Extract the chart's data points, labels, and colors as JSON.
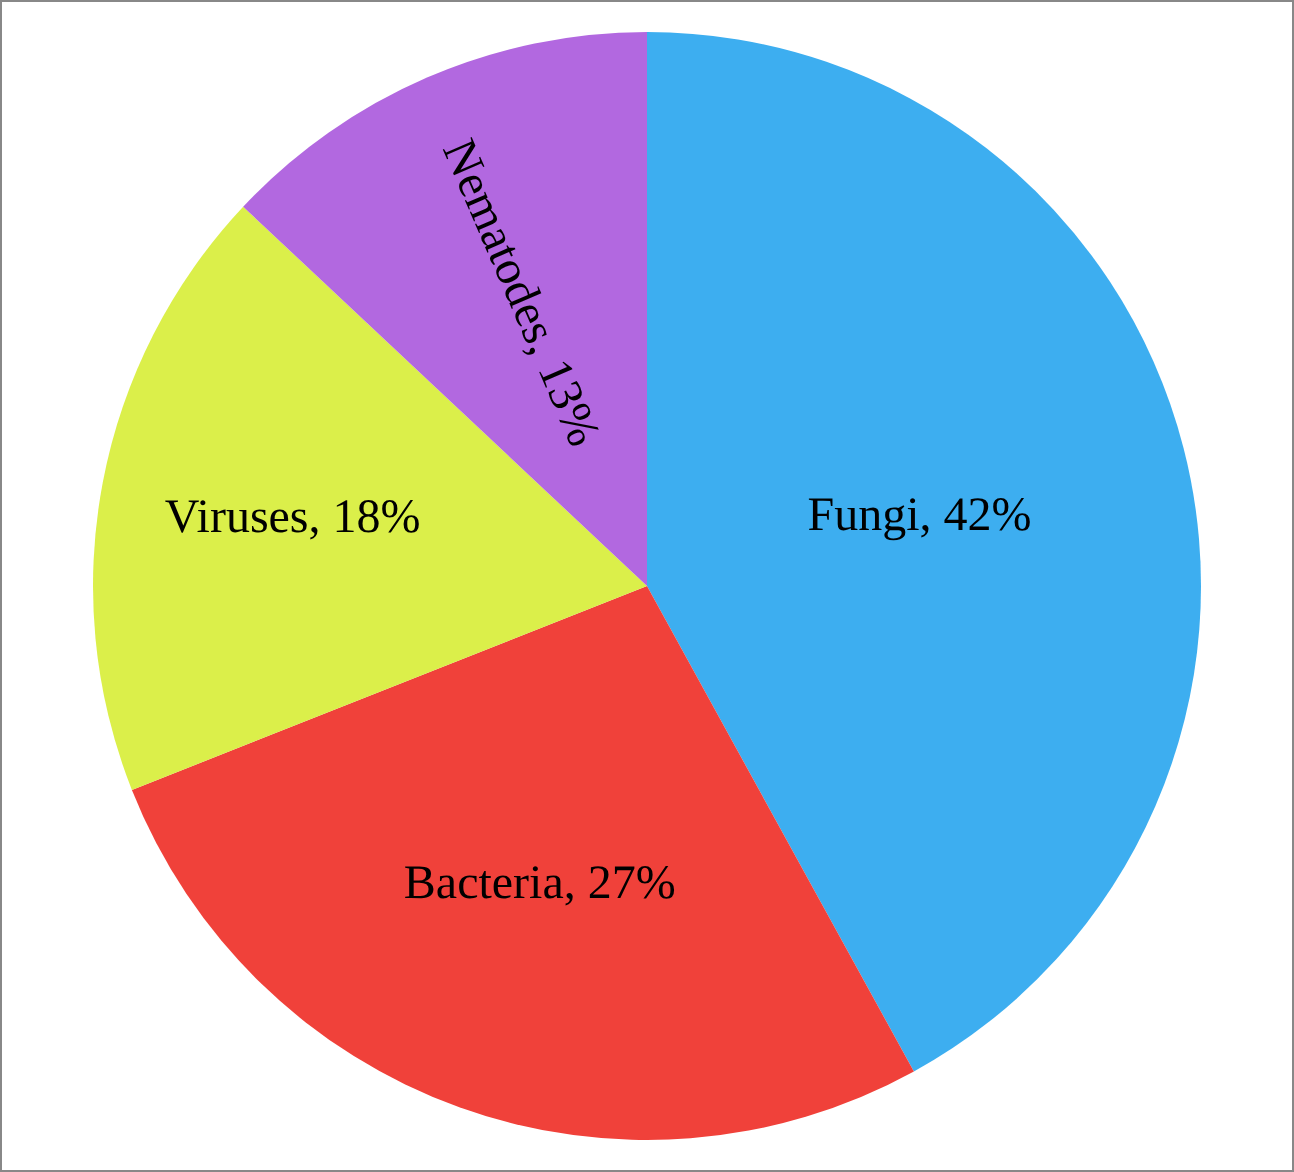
{
  "chart_data": {
    "type": "pie",
    "categories": [
      "Fungi",
      "Bacteria",
      "Viruses",
      "Nematodes"
    ],
    "values": [
      42,
      27,
      18,
      13
    ],
    "value_labels": [
      "42%",
      "27%",
      "18%",
      "13%"
    ],
    "colors": [
      "#3daef0",
      "#f0413a",
      "#dbef4a",
      "#b268e0"
    ],
    "legend": false
  }
}
